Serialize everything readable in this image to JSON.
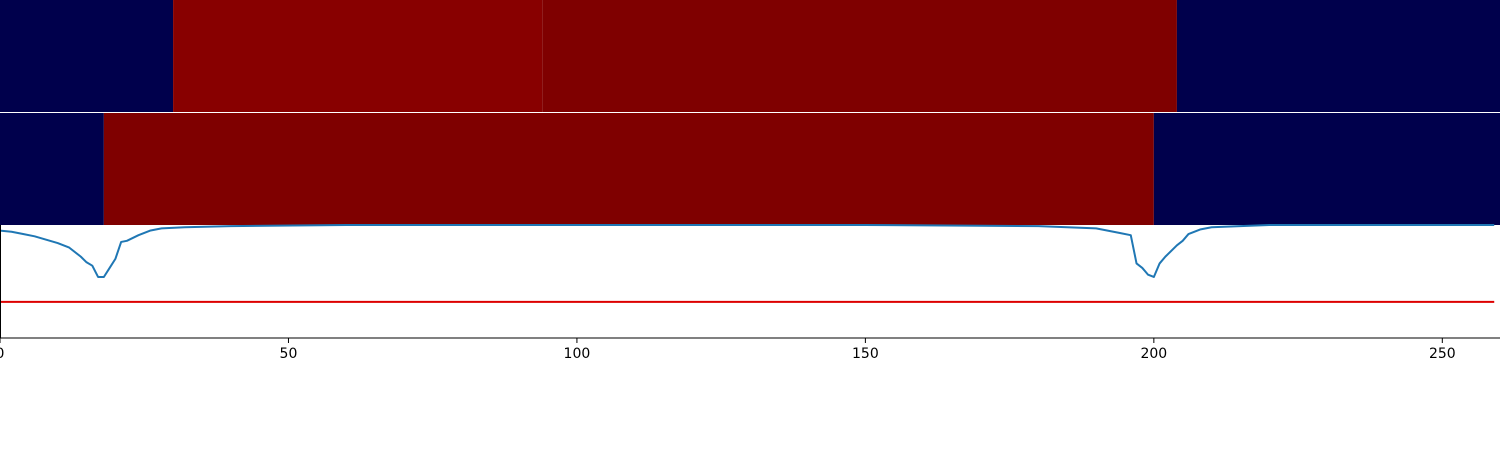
{
  "chart_data": {
    "type": "heatmap",
    "xlim": [
      0,
      260
    ],
    "x_ticks": [
      0,
      50,
      100,
      150,
      200,
      250
    ],
    "x_tick_labels": [
      "0",
      "50",
      "100",
      "150",
      "200",
      "250"
    ],
    "heatmap_rows": [
      {
        "row": 1,
        "segments": [
          {
            "x_start": 0,
            "x_end": 30,
            "color": "#00004c"
          },
          {
            "x_start": 30,
            "x_end": 94,
            "color": "#880000"
          },
          {
            "x_start": 94,
            "x_end": 204,
            "color": "#7f0000"
          },
          {
            "x_start": 204,
            "x_end": 260,
            "color": "#00004c"
          }
        ]
      },
      {
        "row": 2,
        "segments": [
          {
            "x_start": 0,
            "x_end": 18,
            "color": "#00004c"
          },
          {
            "x_start": 18,
            "x_end": 200,
            "color": "#7f0000"
          },
          {
            "x_start": 200,
            "x_end": 260,
            "color": "#00004c"
          }
        ]
      }
    ],
    "line_panel": {
      "ylim": [
        0,
        1
      ],
      "grid": false,
      "threshold": {
        "y": 0.32,
        "x_start": 0,
        "x_end": 259,
        "color": "#dd0000"
      },
      "series": [
        {
          "color": "#1f77b4",
          "x": [
            0,
            2,
            4,
            6,
            8,
            10,
            12,
            14,
            15,
            16,
            17,
            18,
            19,
            20,
            21,
            22,
            24,
            26,
            28,
            32,
            40,
            60,
            100,
            150,
            180,
            185,
            190,
            194,
            196,
            197,
            198,
            199,
            200,
            201,
            202,
            204,
            205,
            206,
            208,
            210,
            215,
            220,
            259
          ],
          "y": [
            0.95,
            0.94,
            0.92,
            0.9,
            0.87,
            0.84,
            0.8,
            0.72,
            0.67,
            0.64,
            0.54,
            0.54,
            0.62,
            0.7,
            0.85,
            0.86,
            0.91,
            0.95,
            0.97,
            0.98,
            0.99,
            1.0,
            1.0,
            1.0,
            0.99,
            0.98,
            0.97,
            0.93,
            0.91,
            0.66,
            0.62,
            0.56,
            0.54,
            0.66,
            0.72,
            0.82,
            0.86,
            0.92,
            0.96,
            0.98,
            0.99,
            1.0,
            1.0
          ]
        }
      ]
    }
  }
}
